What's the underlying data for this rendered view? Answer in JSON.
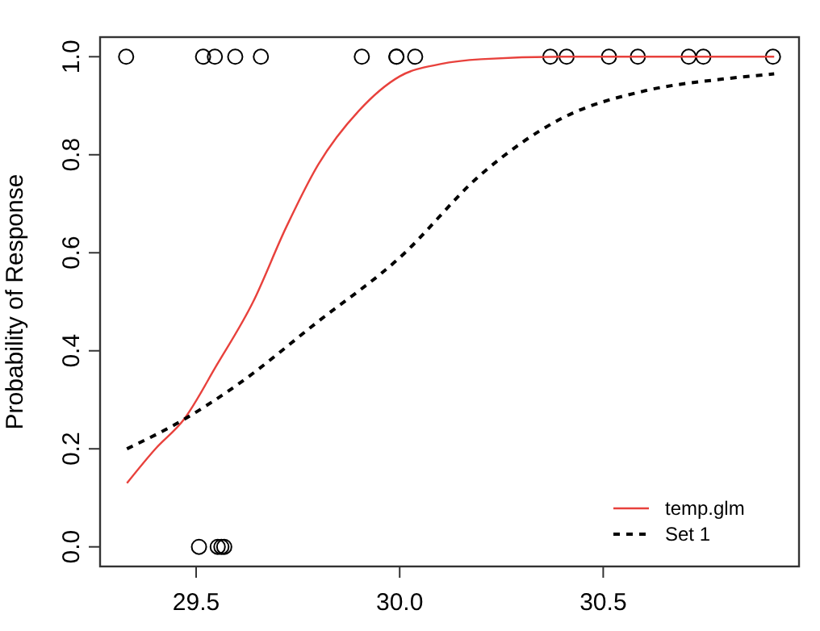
{
  "chart_data": {
    "type": "scatter",
    "ylabel": "Probability of Response",
    "xlim": [
      29.264,
      30.981
    ],
    "ylim": [
      -0.04,
      1.04
    ],
    "xticks": [
      29.5,
      {
        "value": 30,
        "label": "30.0"
      },
      30.5
    ],
    "yticks": [
      {
        "value": 0,
        "label": "0.0"
      },
      0.2,
      0.4,
      0.6,
      0.8,
      {
        "value": 1,
        "label": "1.0"
      }
    ],
    "grid": false,
    "legend": "bottom right",
    "series": [
      {
        "color": "#000000",
        "marker": "circle",
        "x": [
          29.328,
          29.517,
          29.546,
          29.596,
          29.659,
          29.907,
          29.992,
          29.992,
          30.038,
          30.37,
          30.41,
          30.514,
          30.585,
          30.71,
          30.746,
          30.917,
          29.507,
          29.553,
          29.562,
          29.569
        ],
        "values": [
          1,
          1,
          1,
          1,
          1,
          1,
          1,
          1,
          1,
          1,
          1,
          1,
          1,
          1,
          1,
          1,
          0,
          0,
          0,
          0
        ]
      },
      {
        "type": "line",
        "name": "temp.glm",
        "color": "#e8413c",
        "line_style": "solid",
        "x": [
          29.33,
          29.4,
          29.47,
          29.55,
          29.64,
          29.72,
          29.8,
          29.9,
          30.0,
          30.1,
          30.2,
          30.4,
          30.92
        ],
        "values": [
          0.13,
          0.2,
          0.26,
          0.37,
          0.5,
          0.65,
          0.78,
          0.89,
          0.96,
          0.985,
          0.995,
          1.0,
          1.0
        ]
      },
      {
        "type": "line",
        "name": "Set 1",
        "color": "#000000",
        "line_style": "dashed",
        "x": [
          29.33,
          29.47,
          29.6,
          29.8,
          30.0,
          30.2,
          30.4,
          30.6,
          30.8,
          30.92
        ],
        "values": [
          0.2,
          0.26,
          0.33,
          0.46,
          0.59,
          0.76,
          0.875,
          0.93,
          0.955,
          0.965
        ]
      }
    ]
  }
}
